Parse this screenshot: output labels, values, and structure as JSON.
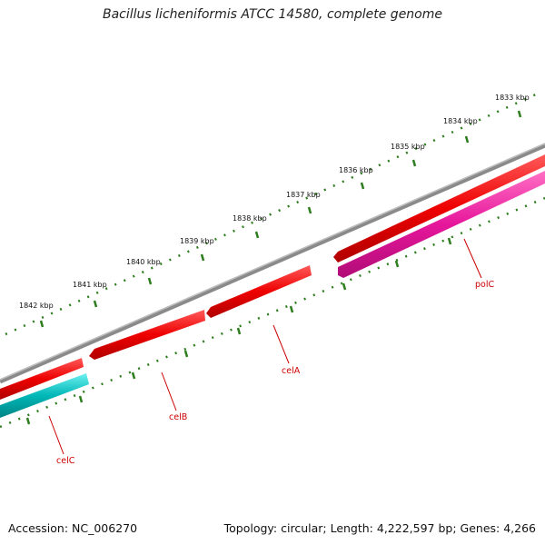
{
  "title": "Bacillus licheniformis ATCC 14580, complete genome",
  "footer": {
    "accession": "Accession: NC_006270",
    "topology": "Topology: circular; Length: 4,222,597 bp; Genes: 4,266"
  },
  "ticks": [
    {
      "label": "1833 kbp",
      "kbp": 1833
    },
    {
      "label": "1834 kbp",
      "kbp": 1834
    },
    {
      "label": "1835 kbp",
      "kbp": 1835
    },
    {
      "label": "1836 kbp",
      "kbp": 1836
    },
    {
      "label": "1837 kbp",
      "kbp": 1837
    },
    {
      "label": "1838 kbp",
      "kbp": 1838
    },
    {
      "label": "1839 kbp",
      "kbp": 1839
    },
    {
      "label": "1840 kbp",
      "kbp": 1840
    },
    {
      "label": "1841 kbp",
      "kbp": 1841
    },
    {
      "label": "1842 kbp",
      "kbp": 1842
    }
  ],
  "genes": [
    {
      "name": "celC",
      "color": "#00b7b7"
    },
    {
      "name": "celB",
      "color": "#ee0000"
    },
    {
      "name": "celA",
      "color": "#ee0000"
    },
    {
      "name": "polC",
      "color": "#e6169b"
    }
  ],
  "colors": {
    "backbone": "#808080",
    "forward_strand": "#ee0000",
    "tick": "#2e7d1f",
    "label": "#cc0000"
  }
}
